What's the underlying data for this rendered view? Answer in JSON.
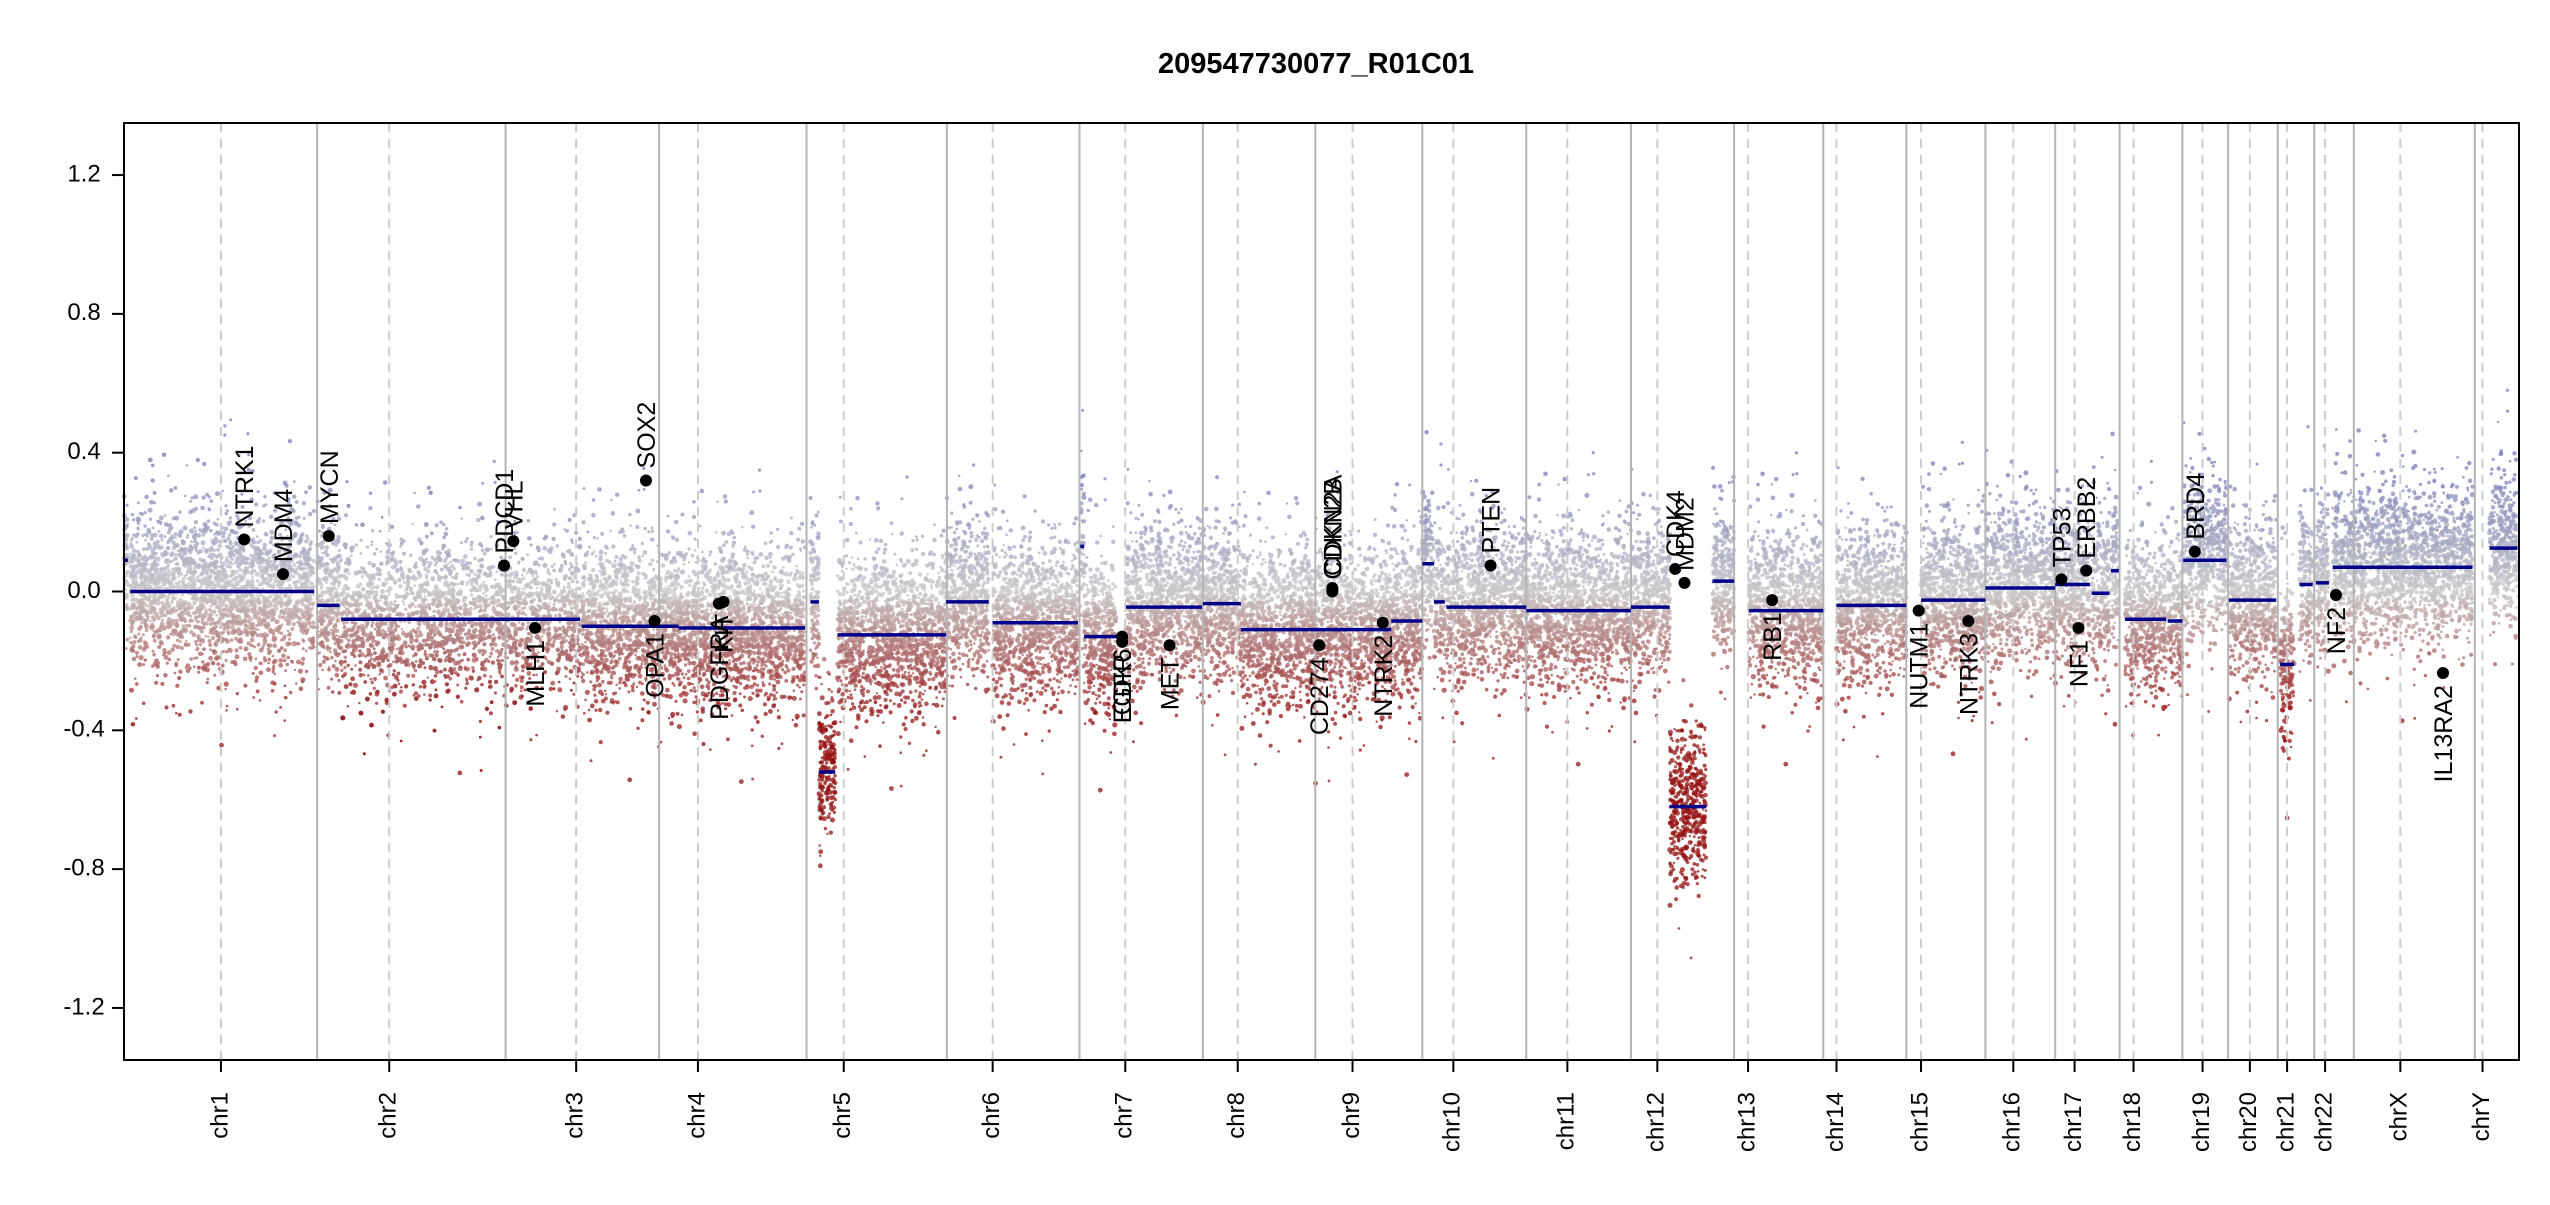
{
  "chart_data": {
    "type": "scatter",
    "title": "209547730077_R01C01",
    "xlabel": "",
    "ylabel": "",
    "ylim": [
      -1.35,
      1.35
    ],
    "yticks": [
      -1.2,
      -0.8,
      -0.4,
      0.0,
      0.4,
      0.8,
      1.2
    ],
    "ytick_labels": [
      "-1.2",
      "-0.8",
      "-0.4",
      "0.0",
      "0.4",
      "0.8",
      "1.2"
    ],
    "grid": false,
    "colors": {
      "gain": "#8e92c2",
      "loss": "#a33a3a",
      "neutral": "#c8c8c8",
      "segment": "#00008b",
      "gene_marker": "#000000",
      "chrom_boundary": "#b4b4b4"
    },
    "chromosomes": [
      {
        "name": "chr1",
        "start": 0,
        "end": 249,
        "centromere": 125
      },
      {
        "name": "chr2",
        "start": 249,
        "end": 492,
        "centromere": 342
      },
      {
        "name": "chr3",
        "start": 492,
        "end": 690,
        "centromere": 583
      },
      {
        "name": "chr4",
        "start": 690,
        "end": 880,
        "centromere": 740
      },
      {
        "name": "chr5",
        "start": 880,
        "end": 1061,
        "centromere": 928
      },
      {
        "name": "chr6",
        "start": 1061,
        "end": 1232,
        "centromere": 1120
      },
      {
        "name": "chr7",
        "start": 1232,
        "end": 1391,
        "centromere": 1291
      },
      {
        "name": "chr8",
        "start": 1391,
        "end": 1536,
        "centromere": 1436
      },
      {
        "name": "chr9",
        "start": 1536,
        "end": 1674,
        "centromere": 1584
      },
      {
        "name": "chr10",
        "start": 1674,
        "end": 1808,
        "centromere": 1714
      },
      {
        "name": "chr11",
        "start": 1808,
        "end": 1943,
        "centromere": 1861
      },
      {
        "name": "chr12",
        "start": 1943,
        "end": 2076,
        "centromere": 1977
      },
      {
        "name": "chr13",
        "start": 2076,
        "end": 2191,
        "centromere": 2094
      },
      {
        "name": "chr14",
        "start": 2191,
        "end": 2298,
        "centromere": 2208
      },
      {
        "name": "chr15",
        "start": 2298,
        "end": 2400,
        "centromere": 2317
      },
      {
        "name": "chr16",
        "start": 2400,
        "end": 2490,
        "centromere": 2436
      },
      {
        "name": "chr17",
        "start": 2490,
        "end": 2573,
        "centromere": 2515
      },
      {
        "name": "chr18",
        "start": 2573,
        "end": 2654,
        "centromere": 2591
      },
      {
        "name": "chr19",
        "start": 2654,
        "end": 2713,
        "centromere": 2680
      },
      {
        "name": "chr20",
        "start": 2713,
        "end": 2777,
        "centromere": 2741
      },
      {
        "name": "chr21",
        "start": 2777,
        "end": 2824,
        "centromere": 2789
      },
      {
        "name": "chr22",
        "start": 2824,
        "end": 2875,
        "centromere": 2838
      },
      {
        "name": "chrX",
        "start": 2875,
        "end": 3031,
        "centromere": 2935
      },
      {
        "name": "chrY",
        "start": 3031,
        "end": 3088,
        "centromere": 3041
      }
    ],
    "segments": [
      {
        "start": 0,
        "end": 5,
        "y": 0.09
      },
      {
        "start": 8,
        "end": 245,
        "y": 0.0
      },
      {
        "start": 249,
        "end": 278,
        "y": -0.04
      },
      {
        "start": 280,
        "end": 588,
        "y": -0.08
      },
      {
        "start": 590,
        "end": 715,
        "y": -0.1
      },
      {
        "start": 715,
        "end": 878,
        "y": -0.105
      },
      {
        "start": 885,
        "end": 896,
        "y": -0.03
      },
      {
        "start": 896,
        "end": 917,
        "y": -0.52
      },
      {
        "start": 920,
        "end": 1060,
        "y": -0.125
      },
      {
        "start": 1060,
        "end": 1115,
        "y": -0.03
      },
      {
        "start": 1120,
        "end": 1230,
        "y": -0.09
      },
      {
        "start": 1233,
        "end": 1238,
        "y": 0.13
      },
      {
        "start": 1238,
        "end": 1280,
        "y": -0.13
      },
      {
        "start": 1292,
        "end": 1390,
        "y": -0.045
      },
      {
        "start": 1391,
        "end": 1440,
        "y": -0.035
      },
      {
        "start": 1440,
        "end": 1634,
        "y": -0.11
      },
      {
        "start": 1634,
        "end": 1674,
        "y": -0.085
      },
      {
        "start": 1674,
        "end": 1689,
        "y": 0.08
      },
      {
        "start": 1689,
        "end": 1703,
        "y": -0.03
      },
      {
        "start": 1705,
        "end": 1808,
        "y": -0.045
      },
      {
        "start": 1808,
        "end": 1943,
        "y": -0.055
      },
      {
        "start": 1943,
        "end": 1993,
        "y": -0.045
      },
      {
        "start": 1993,
        "end": 2040,
        "y": -0.62
      },
      {
        "start": 2048,
        "end": 2076,
        "y": 0.03
      },
      {
        "start": 2095,
        "end": 2191,
        "y": -0.055
      },
      {
        "start": 2208,
        "end": 2298,
        "y": -0.04
      },
      {
        "start": 2317,
        "end": 2400,
        "y": -0.025
      },
      {
        "start": 2400,
        "end": 2490,
        "y": 0.01
      },
      {
        "start": 2490,
        "end": 2535,
        "y": 0.02
      },
      {
        "start": 2537,
        "end": 2560,
        "y": -0.005
      },
      {
        "start": 2562,
        "end": 2572,
        "y": 0.06
      },
      {
        "start": 2580,
        "end": 2633,
        "y": -0.08
      },
      {
        "start": 2635,
        "end": 2654,
        "y": -0.085
      },
      {
        "start": 2655,
        "end": 2711,
        "y": 0.09
      },
      {
        "start": 2714,
        "end": 2775,
        "y": -0.025
      },
      {
        "start": 2780,
        "end": 2798,
        "y": -0.21
      },
      {
        "start": 2805,
        "end": 2822,
        "y": 0.02
      },
      {
        "start": 2826,
        "end": 2843,
        "y": 0.025
      },
      {
        "start": 2848,
        "end": 3028,
        "y": 0.07
      },
      {
        "start": 3050,
        "end": 3086,
        "y": 0.125
      }
    ],
    "genes": [
      {
        "name": "NTRK1",
        "pos": 155,
        "y": 0.15,
        "label_dir": "up"
      },
      {
        "name": "MDM4",
        "pos": 205,
        "y": 0.05,
        "label_dir": "up"
      },
      {
        "name": "MYCN",
        "pos": 264,
        "y": 0.16,
        "label_dir": "up"
      },
      {
        "name": "PDGFRA",
        "pos": 767,
        "y": -0.035,
        "label_dir": "down"
      },
      {
        "name": "KIT",
        "pos": 773,
        "y": -0.03,
        "label_dir": "down"
      },
      {
        "name": "PDCD1",
        "pos": 490,
        "y": 0.075,
        "label_dir": "up"
      },
      {
        "name": "VHL",
        "pos": 502,
        "y": 0.145,
        "label_dir": "up"
      },
      {
        "name": "MLH1",
        "pos": 530,
        "y": -0.105,
        "label_dir": "down"
      },
      {
        "name": "SOX2",
        "pos": 673,
        "y": 0.32,
        "label_dir": "up"
      },
      {
        "name": "OPA1",
        "pos": 684,
        "y": -0.085,
        "label_dir": "down"
      },
      {
        "name": "EGFR",
        "pos": 1287,
        "y": -0.145,
        "label_dir": "down"
      },
      {
        "name": "CDK6",
        "pos": 1287,
        "y": -0.13,
        "label_dir": "down"
      },
      {
        "name": "MET",
        "pos": 1348,
        "y": -0.155,
        "label_dir": "down"
      },
      {
        "name": "CD274",
        "pos": 1541,
        "y": -0.155,
        "label_dir": "down"
      },
      {
        "name": "CDKN2A",
        "pos": 1558,
        "y": 0.01,
        "label_dir": "up"
      },
      {
        "name": "CDKN2B",
        "pos": 1558,
        "y": 0.0,
        "label_dir": "up"
      },
      {
        "name": "NTRK2",
        "pos": 1623,
        "y": -0.09,
        "label_dir": "down"
      },
      {
        "name": "PTEN",
        "pos": 1762,
        "y": 0.075,
        "label_dir": "up"
      },
      {
        "name": "CDK4",
        "pos": 2000,
        "y": 0.065,
        "label_dir": "up"
      },
      {
        "name": "MDM2",
        "pos": 2012,
        "y": 0.025,
        "label_dir": "up"
      },
      {
        "name": "RB1",
        "pos": 2125,
        "y": -0.025,
        "label_dir": "down"
      },
      {
        "name": "NUTM1",
        "pos": 2314,
        "y": -0.055,
        "label_dir": "down"
      },
      {
        "name": "NTRK3",
        "pos": 2378,
        "y": -0.085,
        "label_dir": "down"
      },
      {
        "name": "TP53",
        "pos": 2498,
        "y": 0.035,
        "label_dir": "up"
      },
      {
        "name": "ERBB2",
        "pos": 2530,
        "y": 0.06,
        "label_dir": "up"
      },
      {
        "name": "NF1",
        "pos": 2520,
        "y": -0.105,
        "label_dir": "down"
      },
      {
        "name": "BRD4",
        "pos": 2670,
        "y": 0.115,
        "label_dir": "up"
      },
      {
        "name": "NF2",
        "pos": 2852,
        "y": -0.01,
        "label_dir": "down"
      },
      {
        "name": "IL13RA2",
        "pos": 2990,
        "y": -0.235,
        "label_dir": "down"
      }
    ]
  }
}
